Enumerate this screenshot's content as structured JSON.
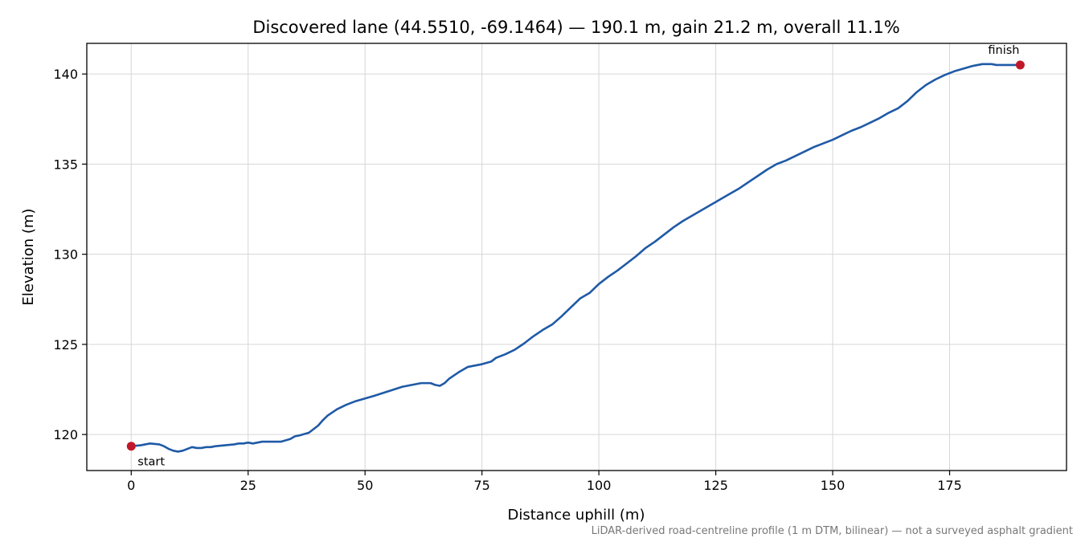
{
  "chart_data": {
    "type": "line",
    "title": "Discovered lane (44.5510, -69.1464) — 190.1 m, gain 21.2 m, overall 11.1%",
    "xlabel": "Distance uphill (m)",
    "ylabel": "Elevation (m)",
    "xlim": [
      -9.5,
      200
    ],
    "ylim": [
      118,
      141.7
    ],
    "xticks": [
      0,
      25,
      50,
      75,
      100,
      125,
      150,
      175
    ],
    "yticks": [
      120,
      125,
      130,
      135,
      140
    ],
    "grid": true,
    "line_color": "#1f5aa6",
    "marker_color": "#c0182a",
    "series": [
      {
        "x": [
          0,
          2,
          4,
          6,
          7,
          8,
          9,
          10,
          11,
          12,
          13,
          14,
          15,
          16,
          17,
          18,
          20,
          22,
          23,
          24,
          25,
          26,
          27,
          28,
          30,
          32,
          34,
          35,
          36,
          38,
          40,
          41,
          42,
          44,
          46,
          48,
          50,
          52,
          55,
          58,
          60,
          62,
          64,
          65,
          66,
          67,
          68,
          70,
          72,
          73,
          75,
          77,
          78,
          80,
          82,
          84,
          86,
          88,
          90,
          92,
          94,
          96,
          97,
          98,
          100,
          102,
          104,
          106,
          108,
          110,
          112,
          114,
          116,
          118,
          120,
          122,
          124,
          126,
          128,
          130,
          132,
          134,
          136,
          138,
          140,
          142,
          144,
          146,
          148,
          150,
          152,
          154,
          156,
          158,
          160,
          162,
          164,
          166,
          168,
          170,
          172,
          174,
          176,
          178,
          180,
          182,
          184,
          185,
          186,
          187,
          188,
          189,
          190.1
        ],
        "y": [
          119.35,
          119.4,
          119.5,
          119.45,
          119.35,
          119.2,
          119.1,
          119.05,
          119.1,
          119.2,
          119.3,
          119.25,
          119.25,
          119.3,
          119.3,
          119.35,
          119.4,
          119.45,
          119.5,
          119.5,
          119.55,
          119.5,
          119.55,
          119.6,
          119.6,
          119.6,
          119.75,
          119.9,
          119.95,
          120.1,
          120.5,
          120.8,
          121.05,
          121.4,
          121.65,
          121.85,
          122.0,
          122.15,
          122.4,
          122.65,
          122.75,
          122.85,
          122.85,
          122.75,
          122.7,
          122.85,
          123.1,
          123.45,
          123.75,
          123.8,
          123.9,
          124.05,
          124.25,
          124.45,
          124.7,
          125.05,
          125.45,
          125.8,
          126.1,
          126.55,
          127.05,
          127.55,
          127.7,
          127.85,
          128.35,
          128.75,
          129.1,
          129.5,
          129.9,
          130.35,
          130.7,
          131.1,
          131.5,
          131.85,
          132.15,
          132.45,
          132.75,
          133.05,
          133.35,
          133.65,
          134.0,
          134.35,
          134.7,
          135.0,
          135.2,
          135.45,
          135.7,
          135.95,
          136.15,
          136.35,
          136.6,
          136.85,
          137.05,
          137.3,
          137.55,
          137.85,
          138.1,
          138.5,
          139.0,
          139.4,
          139.7,
          139.95,
          140.15,
          140.3,
          140.45,
          140.55,
          140.55,
          140.5,
          140.5,
          140.5,
          140.5,
          140.5,
          140.5
        ]
      }
    ],
    "annotations": [
      {
        "label": "start",
        "x": 0,
        "y": 119.35
      },
      {
        "label": "finish",
        "x": 190.1,
        "y": 140.5
      }
    ]
  },
  "footnote": "LiDAR-derived road-centreline profile (1 m DTM, bilinear) — not a surveyed asphalt gradient"
}
